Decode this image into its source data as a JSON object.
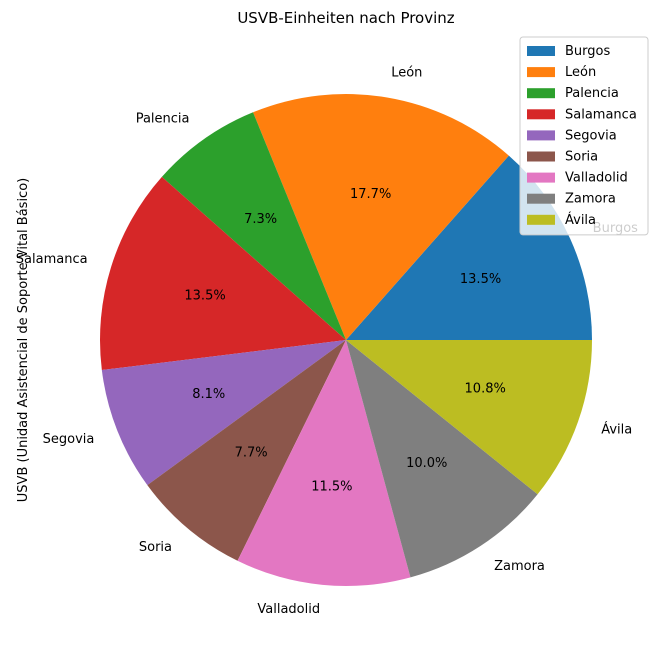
{
  "chart_data": {
    "type": "pie",
    "title": "USVB-Einheiten nach Provinz",
    "ylabel": "USVB (Unidad Asistencial de Soporte Vital Básico)",
    "start_angle_deg": 0,
    "direction": "counterclockwise",
    "legend_position": "upper right",
    "slices": [
      {
        "label": "Burgos",
        "percent": 13.5,
        "pct_label": "13.5%",
        "color": "#1f77b4"
      },
      {
        "label": "León",
        "percent": 17.7,
        "pct_label": "17.7%",
        "color": "#ff7f0e"
      },
      {
        "label": "Palencia",
        "percent": 7.3,
        "pct_label": "7.3%",
        "color": "#2ca02c"
      },
      {
        "label": "Salamanca",
        "percent": 13.5,
        "pct_label": "13.5%",
        "color": "#d62728"
      },
      {
        "label": "Segovia",
        "percent": 8.1,
        "pct_label": "8.1%",
        "color": "#9467bd"
      },
      {
        "label": "Soria",
        "percent": 7.7,
        "pct_label": "7.7%",
        "color": "#8c564b"
      },
      {
        "label": "Valladolid",
        "percent": 11.5,
        "pct_label": "11.5%",
        "color": "#e377c2"
      },
      {
        "label": "Zamora",
        "percent": 10.0,
        "pct_label": "10.0%",
        "color": "#7f7f7f"
      },
      {
        "label": "Ávila",
        "percent": 10.8,
        "pct_label": "10.8%",
        "color": "#bcbd22"
      }
    ]
  }
}
